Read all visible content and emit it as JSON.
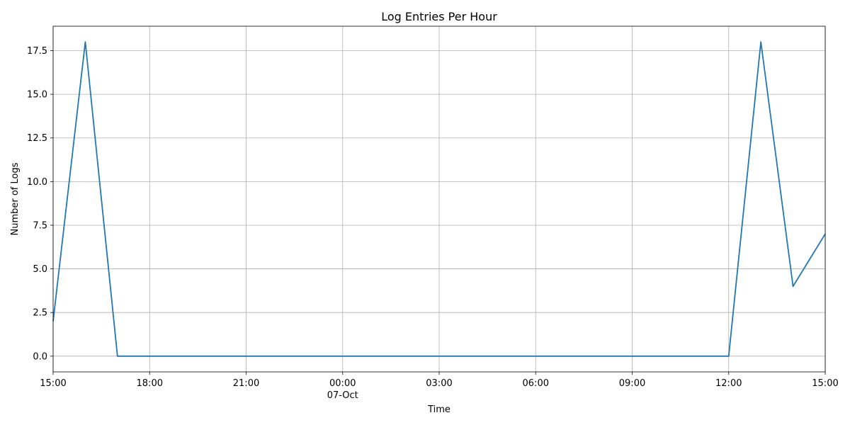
{
  "chart_data": {
    "type": "line",
    "title": "Log Entries Per Hour",
    "xlabel": "Time",
    "ylabel": "Number of Logs",
    "x_axis_type": "time",
    "x_range": [
      "2023-10-06T15:00",
      "2023-10-07T15:00"
    ],
    "ylim": [
      -0.9,
      18.9
    ],
    "grid": true,
    "color": "#1f77b4",
    "x_ticks": [
      {
        "value": "2023-10-06T15:00",
        "label": "15:00"
      },
      {
        "value": "2023-10-06T18:00",
        "label": "18:00"
      },
      {
        "value": "2023-10-06T21:00",
        "label": "21:00"
      },
      {
        "value": "2023-10-07T00:00",
        "label": "00:00",
        "sublabel": "07-Oct"
      },
      {
        "value": "2023-10-07T03:00",
        "label": "03:00"
      },
      {
        "value": "2023-10-07T06:00",
        "label": "06:00"
      },
      {
        "value": "2023-10-07T09:00",
        "label": "09:00"
      },
      {
        "value": "2023-10-07T12:00",
        "label": "12:00"
      },
      {
        "value": "2023-10-07T15:00",
        "label": "15:00"
      }
    ],
    "y_ticks": [
      {
        "value": 0.0,
        "label": "0.0"
      },
      {
        "value": 2.5,
        "label": "2.5"
      },
      {
        "value": 5.0,
        "label": "5.0"
      },
      {
        "value": 7.5,
        "label": "7.5"
      },
      {
        "value": 10.0,
        "label": "10.0"
      },
      {
        "value": 12.5,
        "label": "12.5"
      },
      {
        "value": 15.0,
        "label": "15.0"
      },
      {
        "value": 17.5,
        "label": "17.5"
      }
    ],
    "series": [
      {
        "x": [
          "2023-10-06T15:00",
          "2023-10-06T16:00",
          "2023-10-06T17:00",
          "2023-10-06T18:00",
          "2023-10-06T19:00",
          "2023-10-06T20:00",
          "2023-10-06T21:00",
          "2023-10-06T22:00",
          "2023-10-06T23:00",
          "2023-10-07T00:00",
          "2023-10-07T01:00",
          "2023-10-07T02:00",
          "2023-10-07T03:00",
          "2023-10-07T04:00",
          "2023-10-07T05:00",
          "2023-10-07T06:00",
          "2023-10-07T07:00",
          "2023-10-07T08:00",
          "2023-10-07T09:00",
          "2023-10-07T10:00",
          "2023-10-07T11:00",
          "2023-10-07T12:00",
          "2023-10-07T13:00",
          "2023-10-07T14:00",
          "2023-10-07T15:00"
        ],
        "values": [
          2,
          18,
          0,
          0,
          0,
          0,
          0,
          0,
          0,
          0,
          0,
          0,
          0,
          0,
          0,
          0,
          0,
          0,
          0,
          0,
          0,
          0,
          18,
          4,
          7
        ]
      }
    ]
  }
}
